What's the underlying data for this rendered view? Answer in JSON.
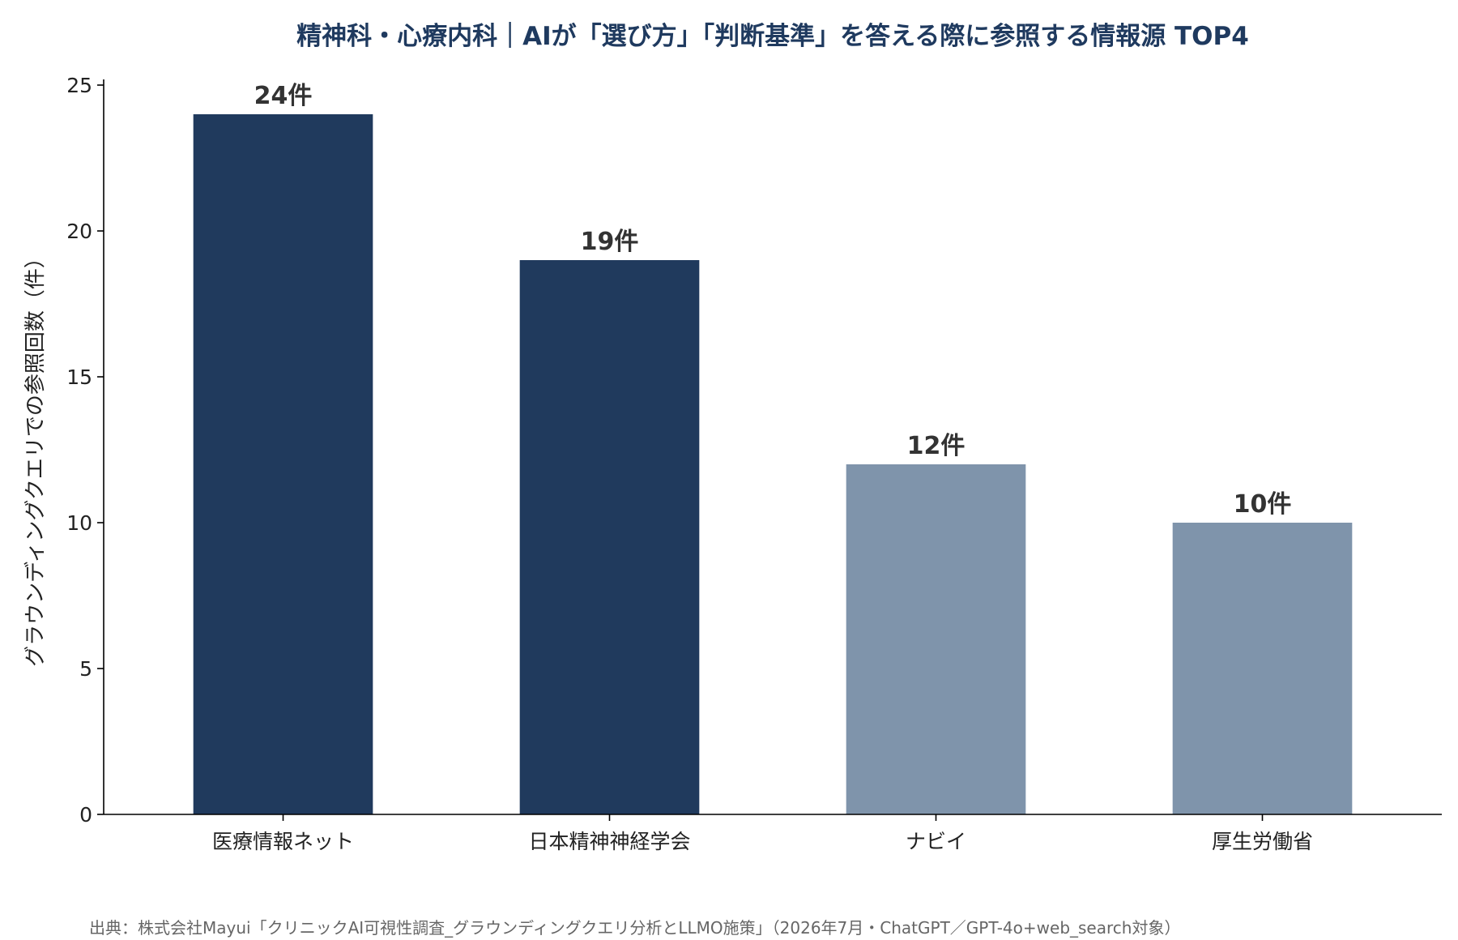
{
  "chart_data": {
    "type": "bar",
    "title": "精神科・心療内科｜AIが「選び方」「判断基準」を答える際に参照する情報源 TOP4",
    "xlabel": "",
    "ylabel": "グラウンディングクエリでの参照回数（件）",
    "categories": [
      "医療情報ネット",
      "日本精神神経学会",
      "ナビイ",
      "厚生労働省"
    ],
    "values": [
      24,
      19,
      12,
      10
    ],
    "data_labels": [
      "24件",
      "19件",
      "12件",
      "10件"
    ],
    "colors": [
      "#203a5d",
      "#203a5d",
      "#7f94ab",
      "#7f94ab"
    ],
    "ylim": [
      0,
      25
    ],
    "yticks": [
      0,
      5,
      10,
      15,
      20,
      25
    ],
    "grid": false,
    "legend": "none"
  },
  "source_note": "出典：株式会社Mayui「クリニックAI可視性調査_グラウンディングクエリ分析とLLMO施策」（2026年7月・ChatGPT／GPT-4o+web_search対象）"
}
